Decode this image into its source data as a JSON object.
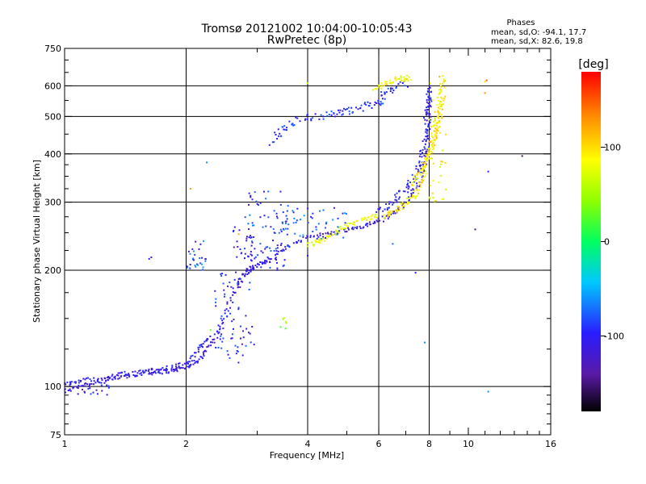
{
  "chart_data": {
    "type": "scatter",
    "title": "Tromsø 20121002 10:04:00-10:05:43",
    "subtitle": "RwPretec (8p)",
    "xlabel": "Frequency [MHz]",
    "ylabel": "Stationary phase Virtual Height [km]",
    "x_scale": "log",
    "y_scale": "log",
    "xlim": [
      1,
      16
    ],
    "ylim": [
      75,
      750
    ],
    "x_ticks": [
      1,
      2,
      4,
      6,
      8,
      10,
      16
    ],
    "y_ticks": [
      75,
      100,
      200,
      300,
      400,
      500,
      600,
      750
    ],
    "grid_x": [
      2,
      4,
      6,
      8
    ],
    "grid_y": [
      100,
      200,
      300,
      400,
      500,
      600
    ],
    "colorbar": {
      "label": "[deg]",
      "min": -180,
      "max": 180,
      "ticks": [
        100,
        0,
        -100
      ],
      "tick_labels": [
        "100",
        "0",
        "-100"
      ]
    },
    "stats": {
      "heading": "Phases",
      "line_o": "mean, sd,O: -94.1, 17.7",
      "line_x": "mean, sd,X:  82.6, 19.8"
    },
    "traces": [
      {
        "name_hint": "",
        "phase": -110,
        "spread": 3,
        "points": [
          [
            1.0,
            97
          ],
          [
            1.1,
            101
          ],
          [
            1.25,
            103
          ],
          [
            1.4,
            106
          ],
          [
            1.55,
            108
          ],
          [
            1.7,
            109
          ],
          [
            1.85,
            110
          ],
          [
            2.0,
            112
          ],
          [
            2.15,
            117
          ],
          [
            2.3,
            128
          ],
          [
            2.45,
            145
          ],
          [
            2.6,
            170
          ],
          [
            2.75,
            192
          ],
          [
            2.85,
            200
          ],
          [
            3.0,
            205
          ],
          [
            3.2,
            212
          ],
          [
            3.5,
            228
          ],
          [
            4.0,
            244
          ],
          [
            4.5,
            248
          ],
          [
            5.0,
            254
          ],
          [
            5.5,
            260
          ],
          [
            6.0,
            268
          ],
          [
            6.5,
            280
          ],
          [
            7.0,
            300
          ],
          [
            7.5,
            330
          ],
          [
            7.8,
            380
          ],
          [
            7.95,
            450
          ],
          [
            8.0,
            520
          ],
          [
            8.0,
            610
          ]
        ]
      },
      {
        "name_hint": "",
        "phase": -100,
        "spread": 4,
        "points": [
          [
            6.0,
            285
          ],
          [
            6.5,
            300
          ],
          [
            7.0,
            325
          ],
          [
            7.4,
            350
          ],
          [
            7.7,
            390
          ],
          [
            7.85,
            450
          ],
          [
            7.95,
            520
          ],
          [
            8.0,
            580
          ]
        ]
      },
      {
        "name_hint": "",
        "phase": -90,
        "spread": 5,
        "points": [
          [
            3.3,
            430
          ],
          [
            3.5,
            470
          ],
          [
            3.9,
            495
          ],
          [
            4.5,
            505
          ],
          [
            5.0,
            515
          ],
          [
            5.5,
            530
          ],
          [
            6.0,
            545
          ],
          [
            6.4,
            585
          ],
          [
            7.0,
            610
          ]
        ]
      },
      {
        "name_hint": "",
        "phase": -105,
        "spread": 3,
        "points": [
          [
            1.0,
            101
          ],
          [
            1.1,
            104
          ],
          [
            1.25,
            105
          ],
          [
            1.4,
            108
          ],
          [
            1.6,
            110
          ],
          [
            1.8,
            112
          ],
          [
            2.0,
            114
          ],
          [
            2.15,
            125
          ],
          [
            2.3,
            135
          ]
        ]
      },
      {
        "name_hint": "",
        "phase": 90,
        "spread": 3,
        "points": [
          [
            6.2,
            275
          ],
          [
            6.6,
            285
          ],
          [
            7.0,
            298
          ],
          [
            7.4,
            315
          ],
          [
            7.7,
            345
          ],
          [
            7.9,
            380
          ],
          [
            8.1,
            420
          ],
          [
            8.3,
            480
          ],
          [
            8.5,
            560
          ],
          [
            8.7,
            630
          ]
        ]
      },
      {
        "name_hint": "",
        "phase": 95,
        "spread": 3,
        "points": [
          [
            7.2,
            330
          ],
          [
            7.6,
            360
          ],
          [
            8.0,
            400
          ],
          [
            8.3,
            450
          ],
          [
            8.5,
            500
          ],
          [
            8.6,
            560
          ]
        ]
      },
      {
        "name_hint": "",
        "phase": 80,
        "spread": 3,
        "points": [
          [
            4.0,
            232
          ],
          [
            4.3,
            238
          ],
          [
            4.6,
            248
          ],
          [
            5.0,
            262
          ],
          [
            5.5,
            270
          ],
          [
            6.0,
            278
          ]
        ]
      },
      {
        "name_hint": "",
        "phase": 85,
        "spread": 4,
        "points": [
          [
            5.8,
            590
          ],
          [
            6.3,
            610
          ],
          [
            6.8,
            625
          ],
          [
            7.2,
            630
          ]
        ]
      }
    ],
    "clusters": [
      {
        "phase": -100,
        "fx": [
          2.35,
          2.95
        ],
        "hy": [
          115,
          200
        ],
        "n": 70
      },
      {
        "phase": -95,
        "fx": [
          2.8,
          3.6
        ],
        "hy": [
          200,
          320
        ],
        "n": 90
      },
      {
        "phase": -80,
        "fx": [
          3.4,
          5.0
        ],
        "hy": [
          240,
          290
        ],
        "n": 45
      },
      {
        "phase": -85,
        "fx": [
          2.0,
          2.25
        ],
        "hy": [
          200,
          240
        ],
        "n": 30
      },
      {
        "phase": -100,
        "fx": [
          2.6,
          3.0
        ],
        "hy": [
          210,
          260
        ],
        "n": 25
      },
      {
        "phase": 40,
        "fx": [
          3.4,
          3.6
        ],
        "hy": [
          140,
          152
        ],
        "n": 6
      },
      {
        "phase": 90,
        "fx": [
          8.0,
          8.8
        ],
        "hy": [
          300,
          640
        ],
        "n": 45
      },
      {
        "phase": -110,
        "fx": [
          1.05,
          1.3
        ],
        "hy": [
          95,
          104
        ],
        "n": 20
      }
    ],
    "isolated": [
      {
        "f": 1.62,
        "h": 214,
        "phase": -100
      },
      {
        "f": 1.64,
        "h": 216,
        "phase": -110
      },
      {
        "f": 2.25,
        "h": 380,
        "phase": -60
      },
      {
        "f": 2.05,
        "h": 325,
        "phase": 130
      },
      {
        "f": 2.7,
        "h": 248,
        "phase": 120
      },
      {
        "f": 2.3,
        "h": 140,
        "phase": 30
      },
      {
        "f": 4.0,
        "h": 218,
        "phase": -110
      },
      {
        "f": 4.0,
        "h": 610,
        "phase": 60
      },
      {
        "f": 6.5,
        "h": 234,
        "phase": -70
      },
      {
        "f": 7.4,
        "h": 197,
        "phase": -100
      },
      {
        "f": 7.8,
        "h": 130,
        "phase": -60
      },
      {
        "f": 11.2,
        "h": 360,
        "phase": -100
      },
      {
        "f": 11.2,
        "h": 97,
        "phase": -60
      },
      {
        "f": 11.1,
        "h": 620,
        "phase": 150
      },
      {
        "f": 11.0,
        "h": 575,
        "phase": 130
      },
      {
        "f": 11.0,
        "h": 615,
        "phase": 100
      },
      {
        "f": 13.6,
        "h": 395,
        "phase": -150
      },
      {
        "f": 10.4,
        "h": 255,
        "phase": -150
      }
    ]
  }
}
